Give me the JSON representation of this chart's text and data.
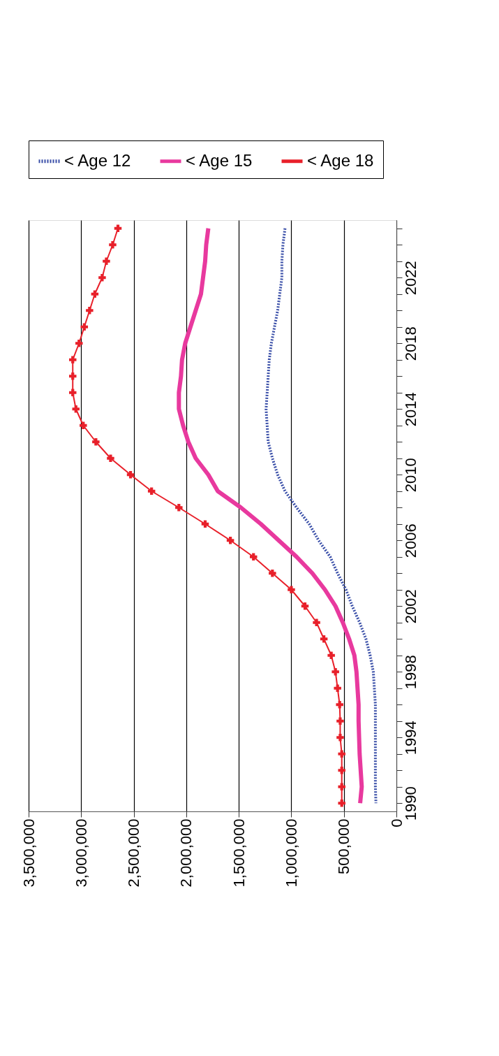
{
  "chart_data": {
    "type": "line",
    "orientation": "horizontal",
    "categories": [
      null,
      null,
      null,
      "2022",
      null,
      null,
      null,
      "2018",
      null,
      null,
      null,
      "2014",
      null,
      null,
      null,
      "2010",
      null,
      null,
      null,
      "2006",
      null,
      null,
      null,
      "2002",
      null,
      null,
      null,
      "1998",
      null,
      null,
      null,
      "1994",
      null,
      null,
      null,
      "1990"
    ],
    "series": [
      {
        "name": "< Age 12",
        "color": "#3a4fa8",
        "line_style": "dotted",
        "marker": "none",
        "values": [
          1060000,
          1080000,
          1090000,
          1090000,
          1110000,
          1130000,
          1160000,
          1190000,
          1210000,
          1220000,
          1230000,
          1240000,
          1230000,
          1220000,
          1180000,
          1130000,
          1060000,
          950000,
          830000,
          740000,
          630000,
          560000,
          480000,
          420000,
          350000,
          290000,
          250000,
          220000,
          210000,
          200000,
          200000,
          200000,
          200000,
          200000,
          200000,
          195000
        ]
      },
      {
        "name": "< Age 15",
        "color": "#e8399e",
        "line_style": "solid",
        "marker": "none",
        "values": [
          1790000,
          1810000,
          1820000,
          1840000,
          1860000,
          1910000,
          1960000,
          2010000,
          2040000,
          2050000,
          2070000,
          2070000,
          2030000,
          1980000,
          1910000,
          1790000,
          1700000,
          1480000,
          1290000,
          1120000,
          950000,
          800000,
          680000,
          580000,
          510000,
          450000,
          400000,
          380000,
          370000,
          360000,
          360000,
          355000,
          350000,
          340000,
          330000,
          345000
        ]
      },
      {
        "name": "< Age 18",
        "color": "#e8202a",
        "line_style": "solid",
        "marker": "cross",
        "values": [
          2650000,
          2700000,
          2760000,
          2800000,
          2870000,
          2920000,
          2970000,
          3020000,
          3080000,
          3080000,
          3080000,
          3050000,
          2980000,
          2860000,
          2720000,
          2530000,
          2330000,
          2070000,
          1820000,
          1580000,
          1360000,
          1180000,
          1000000,
          870000,
          760000,
          690000,
          620000,
          580000,
          560000,
          540000,
          535000,
          535000,
          520000,
          520000,
          520000,
          520000
        ]
      }
    ],
    "xlim": [
      3500000,
      0
    ],
    "xticks": [
      0,
      {
        "value": 500000,
        "label": "500,000"
      },
      {
        "value": 1000000,
        "label": "1,000,000"
      },
      {
        "value": 1500000,
        "label": "1,500,000"
      },
      {
        "value": 2000000,
        "label": "2,000,000"
      },
      {
        "value": 2500000,
        "label": "2,500,000"
      },
      {
        "value": 3000000,
        "label": "3,000,000"
      },
      {
        "value": 3500000,
        "label": "3,500,000"
      }
    ],
    "grid": "x",
    "legend": "top"
  }
}
